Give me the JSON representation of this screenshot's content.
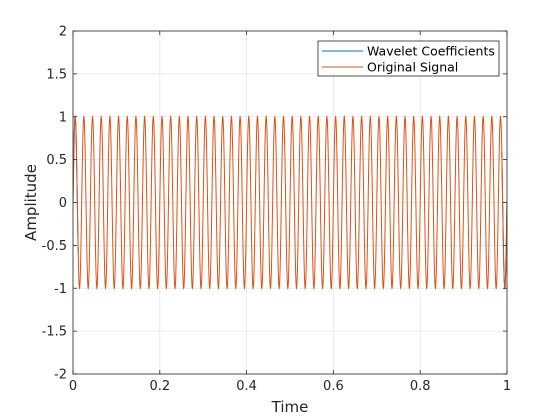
{
  "chart_data": {
    "type": "line",
    "title": "",
    "xlabel": "Time",
    "ylabel": "Amplitude",
    "xlim": [
      0,
      1
    ],
    "ylim": [
      -2,
      2
    ],
    "xticks": [
      0,
      0.2,
      0.4,
      0.6,
      0.8,
      1
    ],
    "yticks": [
      -2,
      -1.5,
      -1,
      -0.5,
      0,
      0.5,
      1,
      1.5,
      2
    ],
    "xtick_labels": [
      "0",
      "0.2",
      "0.4",
      "0.6",
      "0.8",
      "1"
    ],
    "ytick_labels": [
      "-2",
      "-1.5",
      "-1",
      "-0.5",
      "0",
      "0.5",
      "1",
      "1.5",
      "2"
    ],
    "grid": true,
    "legend_position": "top-right",
    "series": [
      {
        "name": "Wavelet Coefficients",
        "color": "#0072BD",
        "kind": "sine",
        "frequency_hz": 50,
        "amplitude": 1,
        "visible_only_at_edges": true
      },
      {
        "name": "Original Signal",
        "color": "#D95319",
        "kind": "sine",
        "frequency_hz": 50,
        "amplitude": 1
      }
    ]
  }
}
